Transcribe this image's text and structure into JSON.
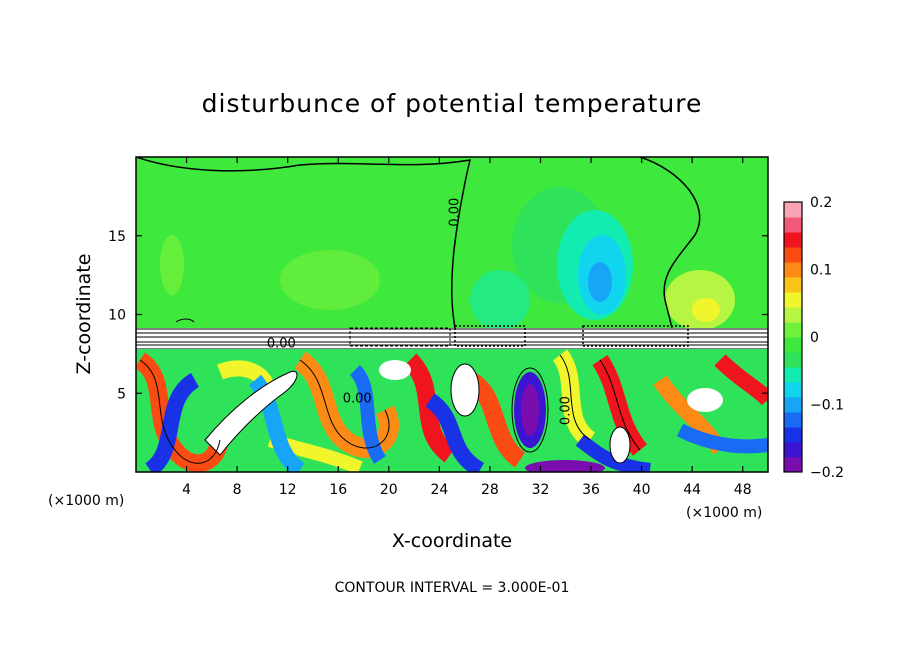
{
  "chart_data": {
    "type": "heatmap",
    "title": "disturbunce of potential temperature",
    "xlabel": "X-coordinate",
    "ylabel": "Z-coordinate",
    "x_unit": "(×1000 m)",
    "x_ticks": [
      4,
      8,
      12,
      16,
      20,
      24,
      28,
      32,
      36,
      40,
      44,
      48
    ],
    "y_ticks": [
      5,
      10,
      15
    ],
    "xlim": [
      0,
      50
    ],
    "ylim": [
      0,
      20
    ],
    "colorbar": {
      "ticks": [
        0.2,
        0.1,
        0,
        -0.1,
        -0.2
      ],
      "tick_labels": [
        "0.2",
        "0.1",
        "0",
        "−0.1",
        "−0.2"
      ],
      "range": [
        -0.2,
        0.2
      ],
      "colors": [
        "#7a0dae",
        "#3c14d2",
        "#1932e6",
        "#1a6bf4",
        "#17a6f7",
        "#11d5ef",
        "#12ecb0",
        "#2ee35a",
        "#3fe83c",
        "#6ff03a",
        "#b6f542",
        "#f1f52b",
        "#fac519",
        "#fb8b14",
        "#fa4b12",
        "#f0141e",
        "#f25a78",
        "#f7a4b4"
      ]
    },
    "contour_labels": [
      {
        "text": "0.00",
        "x": 25.5,
        "y": 16.5,
        "rotate": true
      },
      {
        "text": "0.00",
        "x": 17.5,
        "y": 4.4,
        "rotate": false
      },
      {
        "text": "0.00",
        "x": 11.5,
        "y": 7.9,
        "rotate": false
      },
      {
        "text": "0.00",
        "x": 34.3,
        "y": 3.9,
        "rotate": true
      }
    ],
    "contour_interval_text": "CONTOUR INTERVAL = 3.000E-01"
  },
  "colors": {
    "upper_field": "#3ee83c",
    "background": "#ffffff"
  }
}
